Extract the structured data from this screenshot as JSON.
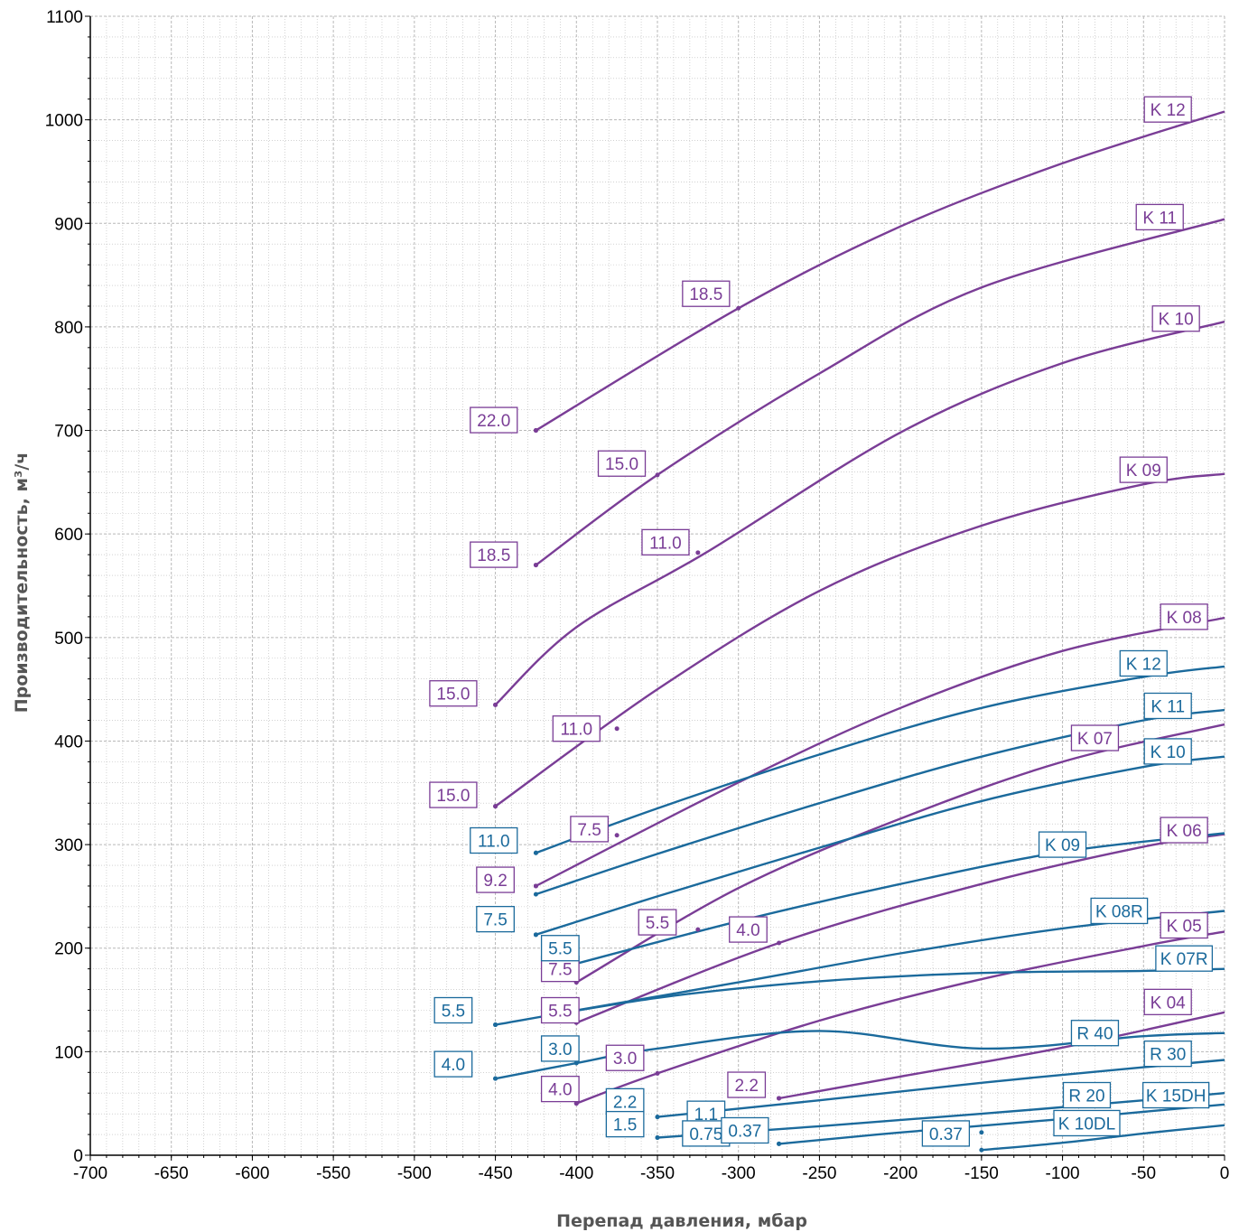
{
  "chart_data": {
    "type": "line",
    "xlabel": "Перепад давления, мбар",
    "ylabel": "Производительность, м³/ч",
    "xlim": [
      -700,
      0
    ],
    "ylim": [
      0,
      1100
    ],
    "x_ticks": [
      "-700",
      "-650",
      "-600",
      "-550",
      "-500",
      "-450",
      "-400",
      "-350",
      "-300",
      "-250",
      "-200",
      "-150",
      "-100",
      "-50",
      "0"
    ],
    "y_ticks": [
      "0",
      "100",
      "200",
      "300",
      "400",
      "500",
      "600",
      "700",
      "800",
      "900",
      "1000",
      "1100"
    ],
    "grid": true,
    "colors": {
      "purple": "#7a3d96",
      "blue": "#1b6a9c",
      "grid": "#b8b8b8",
      "axis": "#000000"
    },
    "series": [
      {
        "name": "K 12",
        "color": "purple",
        "label_at": [
          -35,
          1010
        ],
        "points": [
          [
            -425,
            700
          ],
          [
            -300,
            818
          ],
          [
            -200,
            897
          ],
          [
            -100,
            958
          ],
          [
            0,
            1008
          ]
        ]
      },
      {
        "name": "K 11",
        "color": "purple",
        "label_at": [
          -40,
          906
        ],
        "points": [
          [
            -425,
            570
          ],
          [
            -350,
            657
          ],
          [
            -250,
            755
          ],
          [
            -150,
            838
          ],
          [
            0,
            904
          ]
        ]
      },
      {
        "name": "K 10",
        "color": "purple",
        "label_at": [
          -30,
          808
        ],
        "points": [
          [
            -450,
            435
          ],
          [
            -400,
            510
          ],
          [
            -320,
            582
          ],
          [
            -200,
            698
          ],
          [
            -100,
            765
          ],
          [
            0,
            805
          ]
        ]
      },
      {
        "name": "K 09",
        "color": "purple",
        "label_at": [
          -50,
          662
        ],
        "points": [
          [
            -450,
            337
          ],
          [
            -350,
            450
          ],
          [
            -250,
            545
          ],
          [
            -150,
            608
          ],
          [
            -50,
            648
          ],
          [
            0,
            658
          ]
        ]
      },
      {
        "name": "K 08",
        "color": "purple",
        "label_at": [
          -25,
          520
        ],
        "points": [
          [
            -425,
            260
          ],
          [
            -300,
            360
          ],
          [
            -200,
            432
          ],
          [
            -100,
            487
          ],
          [
            0,
            519
          ]
        ]
      },
      {
        "name": "K 07",
        "color": "purple",
        "label_at": [
          -80,
          403
        ],
        "points": [
          [
            -400,
            167
          ],
          [
            -300,
            258
          ],
          [
            -200,
            325
          ],
          [
            -100,
            380
          ],
          [
            0,
            416
          ]
        ]
      },
      {
        "name": "K 06",
        "color": "purple",
        "label_at": [
          -25,
          314
        ],
        "points": [
          [
            -400,
            128
          ],
          [
            -275,
            205
          ],
          [
            -150,
            262
          ],
          [
            -50,
            298
          ],
          [
            0,
            310
          ]
        ]
      },
      {
        "name": "K 05",
        "color": "purple",
        "label_at": [
          -25,
          222
        ],
        "points": [
          [
            -400,
            50
          ],
          [
            -350,
            79
          ],
          [
            -250,
            130
          ],
          [
            -150,
            170
          ],
          [
            -50,
            202
          ],
          [
            0,
            216
          ]
        ]
      },
      {
        "name": "K 04",
        "color": "purple",
        "label_at": [
          -35,
          148
        ],
        "points": [
          [
            -275,
            55
          ],
          [
            -200,
            76
          ],
          [
            -100,
            104
          ],
          [
            0,
            138
          ]
        ]
      },
      {
        "name": "K 12",
        "color": "blue",
        "label_at": [
          -50,
          475
        ],
        "points": [
          [
            -425,
            292
          ],
          [
            -350,
            335
          ],
          [
            -250,
            387
          ],
          [
            -150,
            432
          ],
          [
            -50,
            462
          ],
          [
            0,
            472
          ]
        ]
      },
      {
        "name": "K 11",
        "color": "blue",
        "label_at": [
          -35,
          434
        ],
        "points": [
          [
            -425,
            252
          ],
          [
            -350,
            291
          ],
          [
            -250,
            340
          ],
          [
            -150,
            385
          ],
          [
            -50,
            420
          ],
          [
            0,
            430
          ]
        ]
      },
      {
        "name": "K 10",
        "color": "blue",
        "label_at": [
          -35,
          390
        ],
        "points": [
          [
            -425,
            213
          ],
          [
            -350,
            250
          ],
          [
            -250,
            297
          ],
          [
            -150,
            342
          ],
          [
            -50,
            375
          ],
          [
            0,
            385
          ]
        ]
      },
      {
        "name": "K 09",
        "color": "blue",
        "label_at": [
          -100,
          300
        ],
        "points": [
          [
            -400,
            185
          ],
          [
            -300,
            226
          ],
          [
            -200,
            262
          ],
          [
            -100,
            293
          ],
          [
            0,
            311
          ]
        ]
      },
      {
        "name": "K 08R",
        "color": "blue",
        "label_at": [
          -65,
          236
        ],
        "points": [
          [
            -400,
            140
          ],
          [
            -300,
            167
          ],
          [
            -200,
            195
          ],
          [
            -100,
            219
          ],
          [
            0,
            236
          ]
        ]
      },
      {
        "name": "K 07R",
        "color": "blue",
        "label_at": [
          -25,
          190
        ],
        "points": [
          [
            -450,
            126
          ],
          [
            -350,
            152
          ],
          [
            -250,
            168
          ],
          [
            -150,
            176
          ],
          [
            -50,
            178
          ],
          [
            0,
            180
          ]
        ]
      },
      {
        "name": "R 40",
        "color": "blue",
        "label_at": [
          -80,
          118
        ],
        "points": [
          [
            -450,
            74
          ],
          [
            -400,
            89
          ],
          [
            -350,
            103
          ],
          [
            -250,
            120
          ],
          [
            -150,
            103
          ],
          [
            -50,
            115
          ],
          [
            0,
            118
          ]
        ]
      },
      {
        "name": "R 30",
        "color": "blue",
        "label_at": [
          -35,
          98
        ],
        "points": [
          [
            -350,
            37
          ],
          [
            -250,
            53
          ],
          [
            -150,
            70
          ],
          [
            -50,
            85
          ],
          [
            0,
            92
          ]
        ]
      },
      {
        "name": "R 20",
        "color": "blue",
        "label_at": [
          -85,
          58
        ],
        "points": [
          [
            -350,
            17
          ],
          [
            -250,
            28
          ],
          [
            -150,
            40
          ],
          [
            -50,
            53
          ],
          [
            0,
            60
          ]
        ]
      },
      {
        "name": "K 15DH",
        "color": "blue",
        "label_at": [
          -30,
          58
        ],
        "points": [
          [
            -275,
            11
          ],
          [
            -200,
            22
          ],
          [
            -100,
            35
          ],
          [
            0,
            49
          ]
        ]
      },
      {
        "name": "K 10DL",
        "color": "blue",
        "label_at": [
          -85,
          31
        ],
        "points": [
          [
            -150,
            5
          ],
          [
            -100,
            12
          ],
          [
            -50,
            21
          ],
          [
            0,
            29
          ]
        ]
      }
    ],
    "power_labels": [
      {
        "text": "22.0",
        "color": "purple",
        "at": [
          -425,
          700
        ],
        "box": [
          -451,
          710
        ]
      },
      {
        "text": "18.5",
        "color": "purple",
        "at": [
          -300,
          818
        ],
        "box": [
          -320,
          832
        ]
      },
      {
        "text": "15.0",
        "color": "purple",
        "at": [
          -350,
          657
        ],
        "box": [
          -372,
          668
        ]
      },
      {
        "text": "18.5",
        "color": "purple",
        "at": [
          -425,
          570
        ],
        "box": [
          -451,
          580
        ]
      },
      {
        "text": "11.0",
        "color": "purple",
        "at": [
          -325,
          582
        ],
        "box": [
          -345,
          592
        ]
      },
      {
        "text": "15.0",
        "color": "purple",
        "at": [
          -450,
          435
        ],
        "box": [
          -476,
          446
        ]
      },
      {
        "text": "11.0",
        "color": "purple",
        "at": [
          -375,
          412
        ],
        "box": [
          -400,
          412
        ]
      },
      {
        "text": "15.0",
        "color": "purple",
        "at": [
          -450,
          337
        ],
        "box": [
          -476,
          348
        ]
      },
      {
        "text": "7.5",
        "color": "purple",
        "at": [
          -375,
          309
        ],
        "box": [
          -392,
          315
        ]
      },
      {
        "text": "9.2",
        "color": "purple",
        "at": [
          -425,
          260
        ],
        "box": [
          -450,
          266
        ]
      },
      {
        "text": "5.5",
        "color": "purple",
        "at": [
          -325,
          218
        ],
        "box": [
          -350,
          225
        ]
      },
      {
        "text": "4.0",
        "color": "purple",
        "at": [
          -275,
          205
        ],
        "box": [
          -294,
          218
        ]
      },
      {
        "text": "7.5",
        "color": "purple",
        "at": [
          -400,
          167
        ],
        "box": [
          -410,
          180
        ]
      },
      {
        "text": "5.5",
        "color": "purple",
        "at": [
          -400,
          128
        ],
        "box": [
          -410,
          140
        ]
      },
      {
        "text": "3.0",
        "color": "purple",
        "at": [
          -350,
          79
        ],
        "box": [
          -370,
          94
        ]
      },
      {
        "text": "4.0",
        "color": "purple",
        "at": [
          -400,
          50
        ],
        "box": [
          -410,
          64
        ]
      },
      {
        "text": "2.2",
        "color": "purple",
        "at": [
          -275,
          55
        ],
        "box": [
          -295,
          68
        ]
      },
      {
        "text": "11.0",
        "color": "blue",
        "at": [
          -425,
          292
        ],
        "box": [
          -451,
          304
        ]
      },
      {
        "text": "7.5",
        "color": "blue",
        "at": [
          -425,
          213
        ],
        "box": [
          -450,
          228
        ]
      },
      {
        "text": "5.5",
        "color": "blue",
        "at": [
          -400,
          185
        ],
        "box": [
          -410,
          200
        ]
      },
      {
        "text": "5.5",
        "color": "blue",
        "at": [
          -450,
          126
        ],
        "box": [
          -476,
          140
        ]
      },
      {
        "text": "4.0",
        "color": "blue",
        "at": [
          -450,
          74
        ],
        "box": [
          -476,
          88
        ]
      },
      {
        "text": "3.0",
        "color": "blue",
        "at": [
          -400,
          89
        ],
        "box": [
          -410,
          103
        ]
      },
      {
        "text": "2.2",
        "color": "blue",
        "at": [
          -350,
          37
        ],
        "box": [
          -370,
          52
        ]
      },
      {
        "text": "1.5",
        "color": "blue",
        "at": [
          -350,
          17
        ],
        "box": [
          -370,
          30
        ]
      },
      {
        "text": "1.1",
        "color": "blue",
        "at": [
          -300,
          28
        ],
        "box": [
          -320,
          40
        ]
      },
      {
        "text": "0.75",
        "color": "blue",
        "at": [
          -300,
          17
        ],
        "box": [
          -320,
          21
        ]
      },
      {
        "text": "0.37",
        "color": "blue",
        "at": [
          -275,
          11
        ],
        "box": [
          -296,
          24
        ]
      },
      {
        "text": "0.37",
        "color": "blue",
        "at": [
          -150,
          22
        ],
        "box": [
          -172,
          21
        ]
      }
    ]
  }
}
